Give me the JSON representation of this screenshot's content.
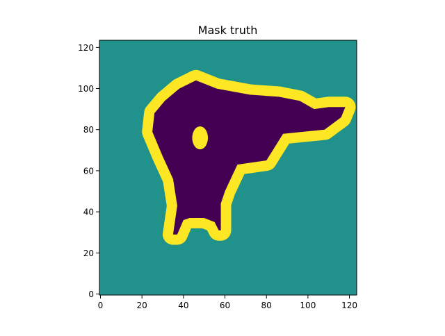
{
  "chart_data": {
    "type": "heatmap",
    "title": "Mask truth",
    "xlabel": "",
    "ylabel": "",
    "image_size": [
      124,
      124
    ],
    "xlim": [
      -0.5,
      123.5
    ],
    "ylim": [
      123.5,
      -0.5
    ],
    "x_ticks": [
      0,
      20,
      40,
      60,
      80,
      100,
      120
    ],
    "y_ticks": [
      0,
      20,
      40,
      60,
      80,
      100,
      120
    ],
    "grid": false,
    "colormap": "viridis",
    "classes": [
      {
        "label": "background",
        "color": "#21918c"
      },
      {
        "label": "object",
        "color": "#440154"
      },
      {
        "label": "boundary",
        "color": "#fde725"
      }
    ],
    "object_outline": [
      [
        35,
        29
      ],
      [
        37,
        29
      ],
      [
        40,
        36
      ],
      [
        43,
        37
      ],
      [
        50,
        37
      ],
      [
        55,
        35
      ],
      [
        57,
        31
      ],
      [
        58,
        31
      ],
      [
        58,
        44
      ],
      [
        60,
        50
      ],
      [
        66,
        63
      ],
      [
        80,
        65
      ],
      [
        88,
        78
      ],
      [
        108,
        80
      ],
      [
        116,
        86
      ],
      [
        118,
        91
      ],
      [
        110,
        91
      ],
      [
        103,
        90
      ],
      [
        96,
        94
      ],
      [
        86,
        96
      ],
      [
        72,
        97
      ],
      [
        56,
        100
      ],
      [
        46,
        104
      ],
      [
        38,
        100
      ],
      [
        31,
        94
      ],
      [
        26,
        88
      ],
      [
        25,
        79
      ],
      [
        30,
        67
      ],
      [
        35,
        56
      ],
      [
        37,
        43
      ]
    ],
    "hole_ellipse": {
      "cx": 48,
      "cy": 76,
      "rx": 3.8,
      "ry": 5.6
    },
    "boundary_width": 5
  }
}
